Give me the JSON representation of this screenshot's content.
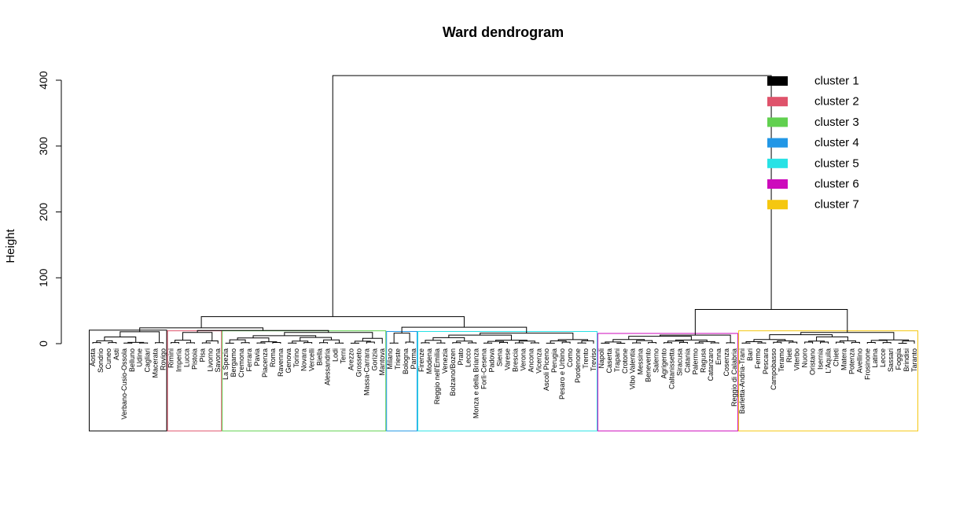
{
  "chart_data": {
    "type": "dendrogram",
    "title": "Ward dendrogram",
    "ylabel": "Height",
    "ylim": [
      0,
      420
    ],
    "y_ticks": [
      0,
      100,
      200,
      300,
      400
    ],
    "merge_heights": {
      "root": 407,
      "left_main": 41,
      "right_main": 52,
      "left_sub_a": 24,
      "left_sub_b": 25,
      "cluster1_top": 18,
      "cluster2_3_join": 20,
      "cluster4_5_join": 18,
      "cluster6_top": 13,
      "cluster7_top": 17
    },
    "legend": [
      {
        "label": "cluster 1",
        "color": "#000000"
      },
      {
        "label": "cluster 2",
        "color": "#DF536B"
      },
      {
        "label": "cluster 3",
        "color": "#61D04F"
      },
      {
        "label": "cluster 4",
        "color": "#2297E6"
      },
      {
        "label": "cluster 5",
        "color": "#28E2E5"
      },
      {
        "label": "cluster 6",
        "color": "#CD0BBC"
      },
      {
        "label": "cluster 7",
        "color": "#F5C710"
      }
    ],
    "clusters": [
      {
        "name": "cluster 1",
        "leaves": [
          "Aosta",
          "Sondrio",
          "Cuneo",
          "Asti",
          "Verbano-Cusio-Ossola",
          "Belluno",
          "Udine",
          "Cagliari",
          "Macerata",
          "Rovigo"
        ]
      },
      {
        "name": "cluster 2",
        "leaves": [
          "Rimini",
          "Imperia",
          "Lucca",
          "Pistoia",
          "Pisa",
          "Livorno",
          "Savona"
        ]
      },
      {
        "name": "cluster 3",
        "leaves": [
          "La Spezia",
          "Bergamo",
          "Cremona",
          "Ferrara",
          "Pavia",
          "Piacenza",
          "Roma",
          "Ravenna",
          "Genova",
          "Torino",
          "Novara",
          "Vercelli",
          "Biella",
          "Alessandria",
          "Lodi",
          "Terni",
          "Arezzo",
          "Grosseto",
          "Massa-Carrara",
          "Gorizia",
          "Mantova"
        ]
      },
      {
        "name": "cluster 4",
        "leaves": [
          "Milano",
          "Trieste",
          "Bologna",
          "Parma"
        ]
      },
      {
        "name": "cluster 5",
        "leaves": [
          "Firenze",
          "Modena",
          "Reggio nell'Emilia",
          "Venezia",
          "Bolzano/Bozen",
          "Prato",
          "Lecco",
          "Monza e della Brianza",
          "Forlì-Cesena",
          "Padova",
          "Siena",
          "Varese",
          "Brescia",
          "Verona",
          "Ancona",
          "Vicenza",
          "Ascoli Piceno",
          "Perugia",
          "Pesaro e Urbino",
          "Como",
          "Pordenone",
          "Trento",
          "Treviso"
        ]
      },
      {
        "name": "cluster 6",
        "leaves": [
          "Napoli",
          "Caserta",
          "Trapani",
          "Crotone",
          "Vibo Valentia",
          "Messina",
          "Benevento",
          "Salerno",
          "Agrigento",
          "Caltanissetta",
          "Siracusa",
          "Catania",
          "Palermo",
          "Ragusa",
          "Catanzaro",
          "Enna",
          "Cosenza",
          "Reggio di Calabria"
        ]
      },
      {
        "name": "cluster 7",
        "leaves": [
          "Barletta-Andria-Trani",
          "Bari",
          "Fermo",
          "Pescara",
          "Campobasso",
          "Teramo",
          "Rieti",
          "Viterbo",
          "Nuoro",
          "Oristano",
          "Isernia",
          "L'Aquila",
          "Chieti",
          "Matera",
          "Potenza",
          "Avellino",
          "Frosinone",
          "Latina",
          "Lecce",
          "Sassari",
          "Foggia",
          "Brindisi",
          "Taranto"
        ]
      }
    ]
  }
}
